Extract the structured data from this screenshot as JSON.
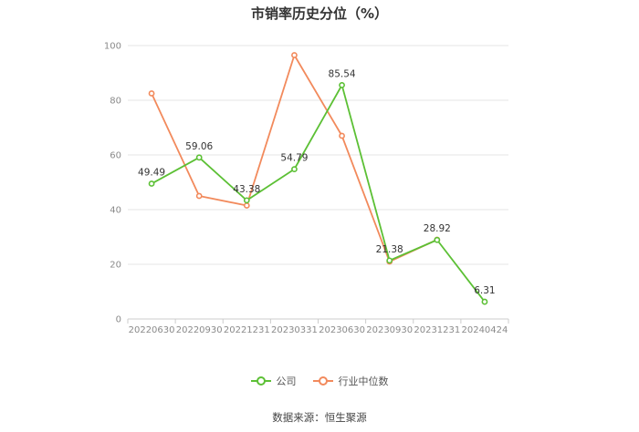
{
  "chart_data": {
    "type": "line",
    "title": "市销率历史分位（%）",
    "categories": [
      "20220630",
      "20220930",
      "20221231",
      "20230331",
      "20230630",
      "20230930",
      "20231231",
      "20240424"
    ],
    "series": [
      {
        "name": "公司",
        "color": "#5cc035",
        "values": [
          49.49,
          59.06,
          43.38,
          54.79,
          85.54,
          21.38,
          28.92,
          6.31
        ],
        "labels": [
          "49.49",
          "59.06",
          "43.38",
          "54.79",
          "85.54",
          "21.38",
          "28.92",
          "6.31"
        ]
      },
      {
        "name": "行业中位数",
        "color": "#f28a5c",
        "values": [
          82.5,
          45.0,
          41.5,
          96.5,
          67.0,
          21.0,
          29.0,
          null
        ]
      }
    ],
    "yticks": [
      "0",
      "20",
      "40",
      "60",
      "80",
      "100"
    ],
    "ylim": [
      0,
      100
    ],
    "grid": true,
    "legend_position": "bottom-center"
  },
  "source": "数据来源：恒生聚源"
}
